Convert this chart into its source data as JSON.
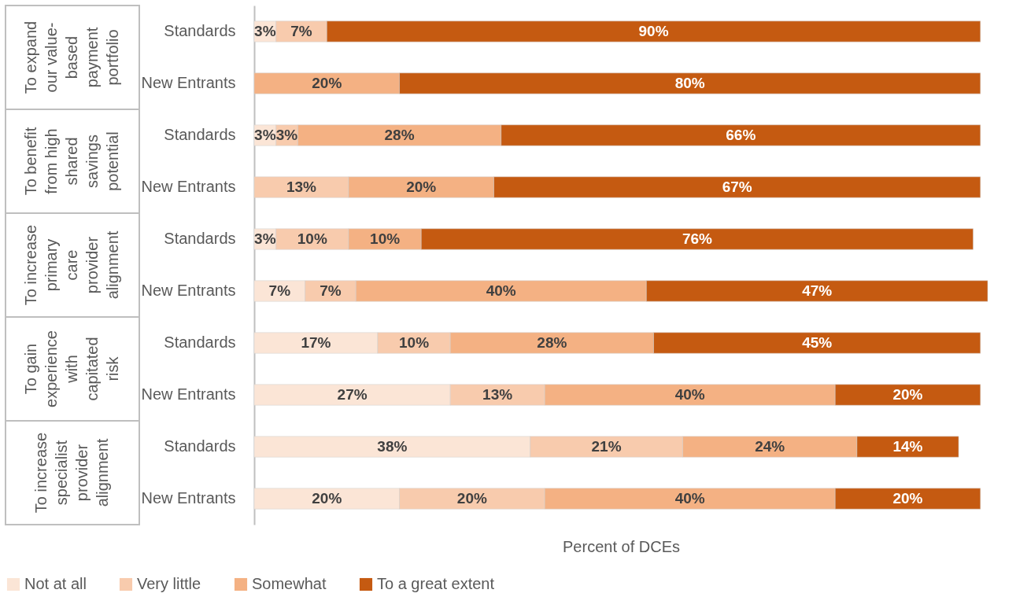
{
  "chart_data": {
    "type": "bar",
    "orientation": "horizontal",
    "stacked": true,
    "categories": [
      "Standards",
      "New Entrants",
      "Standards",
      "New Entrants",
      "Standards",
      "New Entrants",
      "Standards",
      "New Entrants",
      "Standards",
      "New Entrants"
    ],
    "series": [
      {
        "name": "Not at all",
        "color": "#fbe5d6",
        "values": [
          3,
          null,
          3,
          null,
          3,
          7,
          17,
          27,
          38,
          20
        ],
        "value_labels": [
          "3%",
          null,
          "3%",
          null,
          "3%",
          "7%",
          "17%",
          "27%",
          "38%",
          "20%"
        ]
      },
      {
        "name": "Very little",
        "color": "#f8cbad",
        "values": [
          7,
          null,
          3,
          13,
          10,
          7,
          10,
          13,
          21,
          20
        ],
        "value_labels": [
          "7%",
          null,
          "3%",
          "13%",
          "10%",
          "7%",
          "10%",
          "13%",
          "21%",
          "20%"
        ]
      },
      {
        "name": "Somewhat",
        "color": "#f4b183",
        "values": [
          null,
          20,
          28,
          20,
          10,
          40,
          28,
          40,
          24,
          40
        ],
        "value_labels": [
          null,
          "20%",
          "28%",
          "20%",
          "10%",
          "40%",
          "28%",
          "40%",
          "24%",
          "40%"
        ]
      },
      {
        "name": "To a great extent",
        "color": "#c55a11",
        "values": [
          90,
          80,
          66,
          67,
          76,
          47,
          45,
          20,
          14,
          20
        ],
        "value_labels": [
          "90%",
          "80%",
          "66%",
          "67%",
          "76%",
          "47%",
          "45%",
          "20%",
          "14%",
          "20%"
        ]
      }
    ],
    "xlim": [
      0,
      101
    ],
    "xlabel": "Percent of DCEs",
    "tick_labels": "y",
    "legend": "bottom",
    "annotations": [
      "To expand our value-based payment portfolio",
      "To benefit from high shared savings potential",
      "To increase primary care provider alignment",
      "To gain experience with capitated risk",
      "To increase specialist provider alignment"
    ]
  }
}
